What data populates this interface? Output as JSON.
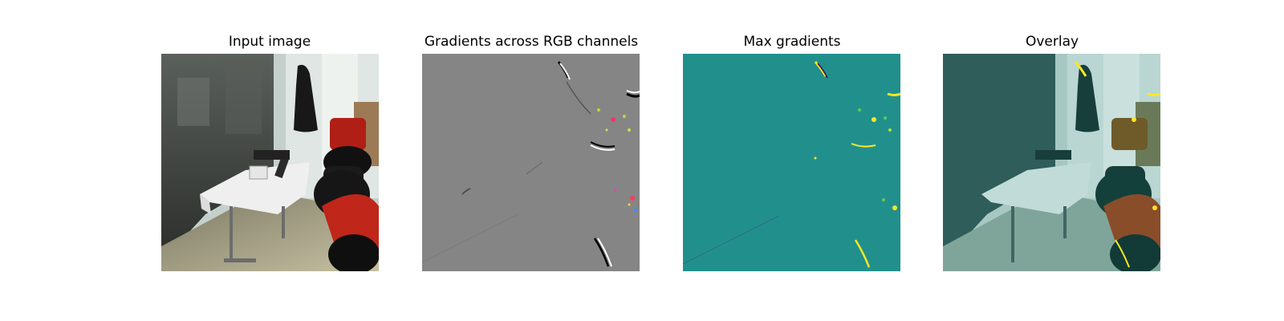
{
  "figure": {
    "panels": [
      {
        "title": "Input image"
      },
      {
        "title": "Gradients across RGB channels"
      },
      {
        "title": "Max gradients"
      },
      {
        "title": "Overlay"
      }
    ]
  },
  "colors": {
    "gradient_neutral_gray": "#858585",
    "max_gradient_background": "#21908c",
    "overlay_tint": "#2a8c88",
    "wall": "#9fb7b1",
    "glass": "#46504c",
    "floor": "#b4ae90",
    "tablecloth": "#eeeeee",
    "robot_red": "#c0261a",
    "robot_black": "#1a1a1a",
    "highlight_yellow": "#fde725"
  },
  "icons": [
    "scene-photo",
    "gradient-map",
    "heatmap",
    "overlay-photo"
  ]
}
